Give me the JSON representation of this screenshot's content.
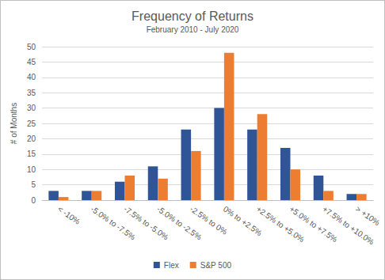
{
  "chart_data": {
    "type": "bar",
    "title": "Frequency of Returns",
    "subtitle": "February 2010 - July 2020",
    "y_label": "# of Months",
    "categories": [
      "< -10%",
      "-5.0% to -7.5%",
      "-7.5% to -5.0%",
      "-5.0% to -2.5%",
      "-2.5% to 0%",
      "0% to +2.5%",
      "+2.5% to +5.0%",
      "+5.0% to +7.5%",
      "+7.5% to +10.0%",
      "> +10%"
    ],
    "series": [
      {
        "name": "Flex",
        "color": "#2f5597",
        "values": [
          3,
          3,
          6,
          11,
          23,
          30,
          23,
          17,
          8,
          2
        ]
      },
      {
        "name": "S&P 500",
        "color": "#ed7d31",
        "values": [
          1,
          3,
          8,
          7,
          16,
          48,
          28,
          10,
          3,
          2
        ]
      }
    ],
    "ylim": [
      0,
      50
    ],
    "yticks": [
      0,
      5,
      10,
      15,
      20,
      25,
      30,
      35,
      40,
      45,
      50
    ],
    "grid": true,
    "legend": "bottom"
  }
}
